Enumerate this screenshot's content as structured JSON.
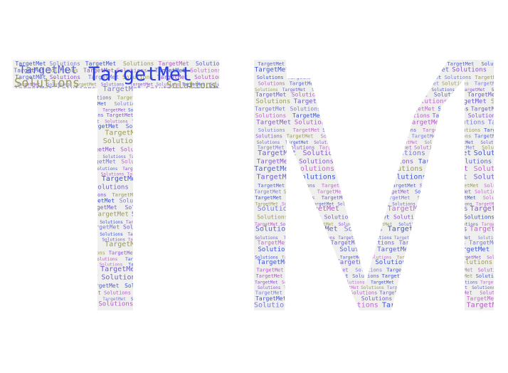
{
  "words": [
    "TargetMet",
    "Solutions"
  ],
  "palette": [
    "#3f56d8",
    "#8a55d6",
    "#b45ac8",
    "#7a7bd8",
    "#9a9a5a",
    "#5a64c8",
    "#6f5fd0",
    "#c06ad0"
  ],
  "shape_fill": "#efefed",
  "headline": {
    "big": "TargetMet",
    "mid_left": "TargetMet",
    "solutions_left": "Solutions",
    "solutions_right": "Solutions"
  }
}
